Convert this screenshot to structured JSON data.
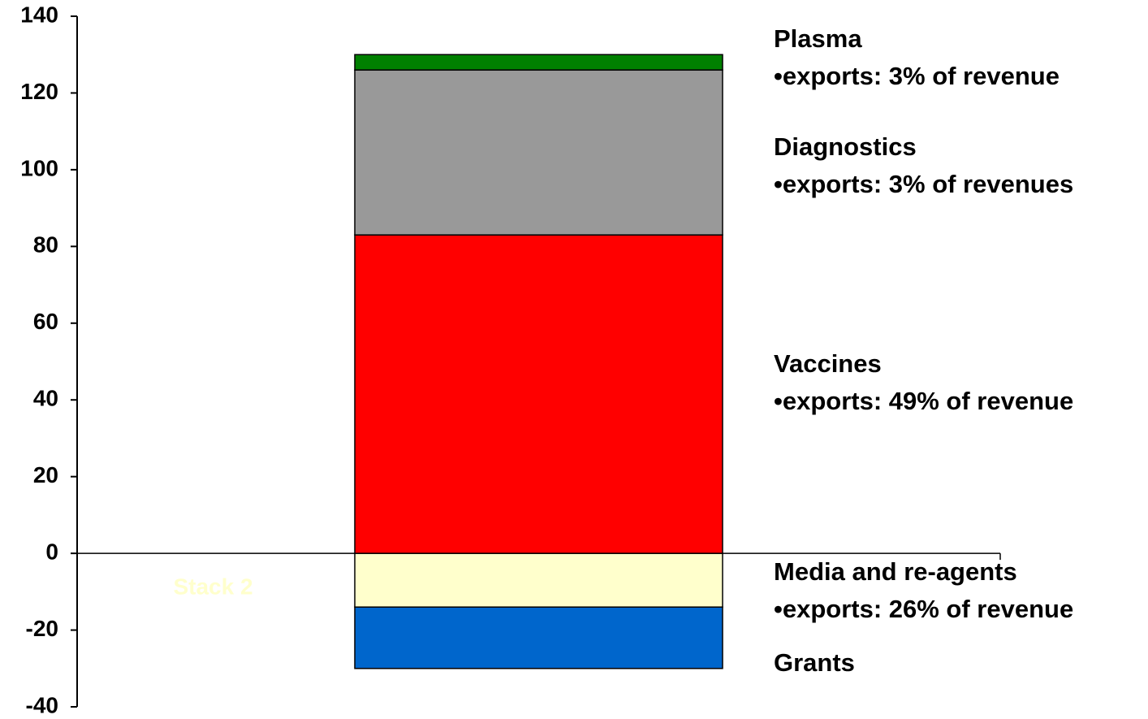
{
  "chart_data": {
    "type": "stacked-bar",
    "categories": [
      "Stack 2",
      null,
      null
    ],
    "series": [
      {
        "name": "Media and re-agents",
        "annotation": "•exports: 26% of revenue",
        "color": "#ffffcc",
        "values": [
          null,
          -14,
          null
        ]
      },
      {
        "name": "Vaccines",
        "annotation": "•exports: 49% of revenue",
        "color": "#ff0000",
        "values": [
          null,
          83,
          null
        ]
      },
      {
        "name": "Diagnostics",
        "annotation": "•exports: 3% of revenues",
        "color": "#999999",
        "values": [
          null,
          43,
          null
        ]
      },
      {
        "name": "Plasma",
        "annotation": "•exports: 3% of revenue",
        "color": "#008000",
        "values": [
          null,
          4,
          null
        ]
      },
      {
        "name": "Grants",
        "color": "#0066cc",
        "values": [
          null,
          -16,
          null
        ]
      }
    ],
    "ylim": [
      -40,
      140
    ],
    "yticks": [
      -40,
      -20,
      0,
      20,
      40,
      60,
      80,
      100,
      120,
      140
    ]
  }
}
